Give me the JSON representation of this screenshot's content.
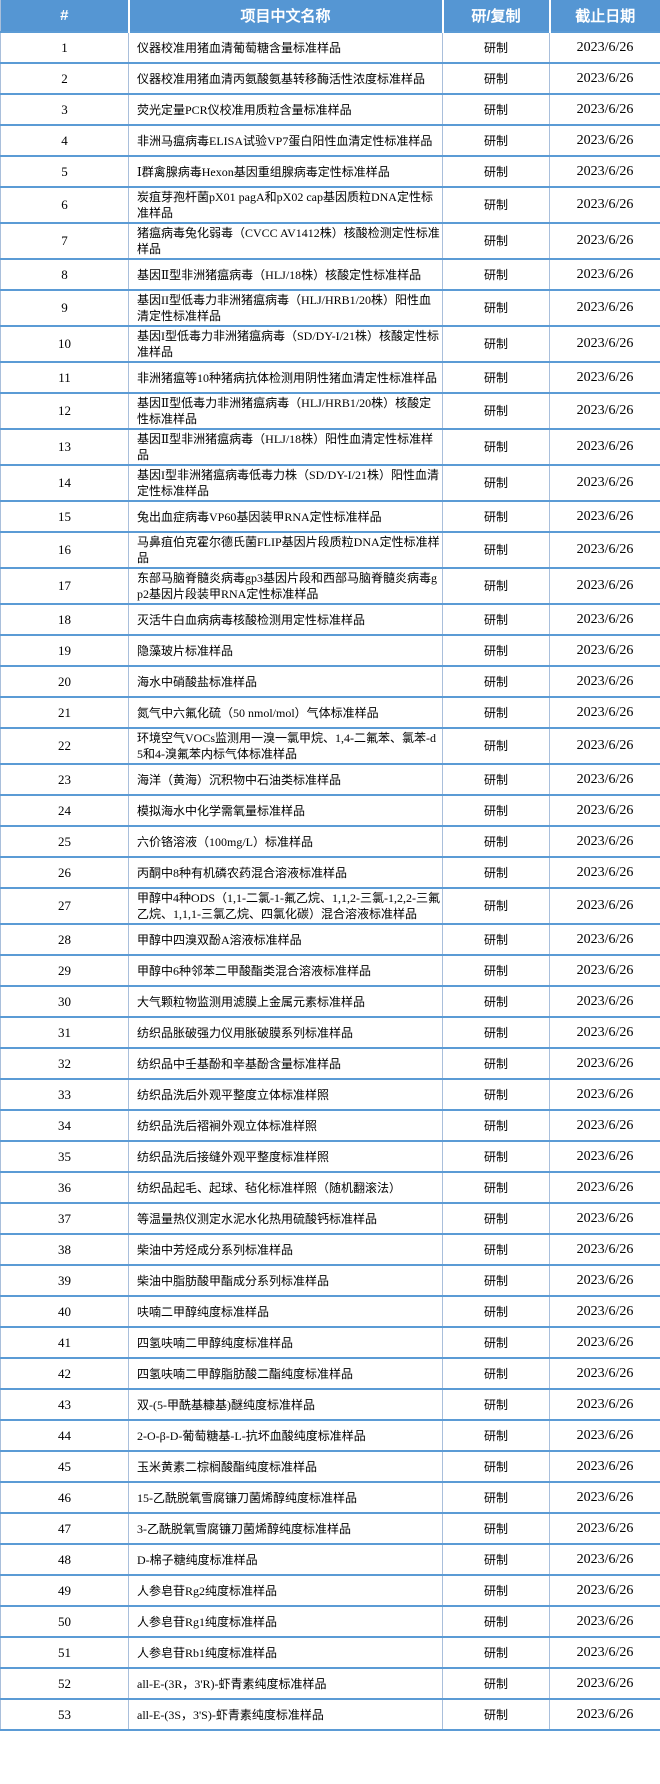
{
  "colors": {
    "header_bg": "#5596D3",
    "header_text": "#FFFFFF",
    "row_border_blue": "#5B9BD5",
    "column_border_light": "#A9BFDB",
    "cell_text": "#000000"
  },
  "table": {
    "headers": [
      "#",
      "项目中文名称",
      "研/复制",
      "截止日期"
    ],
    "rows": [
      {
        "num": "1",
        "name": "仪器校准用猪血清葡萄糖含量标准样品",
        "type": "研制",
        "deadline": "2023/6/26"
      },
      {
        "num": "2",
        "name": "仪器校准用猪血清丙氨酸氨基转移酶活性浓度标准样品",
        "type": "研制",
        "deadline": "2023/6/26"
      },
      {
        "num": "3",
        "name": "荧光定量PCR仪校准用质粒含量标准样品",
        "type": "研制",
        "deadline": "2023/6/26"
      },
      {
        "num": "4",
        "name": "非洲马瘟病毒ELISA试验VP7蛋白阳性血清定性标准样品",
        "type": "研制",
        "deadline": "2023/6/26"
      },
      {
        "num": "5",
        "name": "Ⅰ群禽腺病毒Hexon基因重组腺病毒定性标准样品",
        "type": "研制",
        "deadline": "2023/6/26"
      },
      {
        "num": "6",
        "name": "炭疽芽孢杆菌pX01 pagA和pX02 cap基因质粒DNA定性标准样品",
        "type": "研制",
        "deadline": "2023/6/26"
      },
      {
        "num": "7",
        "name": "猪瘟病毒兔化弱毒（CVCC AV1412株）核酸检测定性标准样品",
        "type": "研制",
        "deadline": "2023/6/26"
      },
      {
        "num": "8",
        "name": "基因Ⅱ型非洲猪瘟病毒（HLJ/18株）核酸定性标准样品",
        "type": "研制",
        "deadline": "2023/6/26"
      },
      {
        "num": "9",
        "name": "基因II型低毒力非洲猪瘟病毒（HLJ/HRB1/20株）阳性血清定性标准样品",
        "type": "研制",
        "deadline": "2023/6/26"
      },
      {
        "num": "10",
        "name": "基因I型低毒力非洲猪瘟病毒（SD/DY-I/21株）核酸定性标准样品",
        "type": "研制",
        "deadline": "2023/6/26"
      },
      {
        "num": "11",
        "name": "非洲猪瘟等10种猪病抗体检测用阴性猪血清定性标准样品",
        "type": "研制",
        "deadline": "2023/6/26"
      },
      {
        "num": "12",
        "name": "基因Ⅱ型低毒力非洲猪瘟病毒（HLJ/HRB1/20株）核酸定性标准样品",
        "type": "研制",
        "deadline": "2023/6/26"
      },
      {
        "num": "13",
        "name": "基因Ⅱ型非洲猪瘟病毒（HLJ/18株）阳性血清定性标准样品",
        "type": "研制",
        "deadline": "2023/6/26"
      },
      {
        "num": "14",
        "name": "基因I型非洲猪瘟病毒低毒力株（SD/DY-I/21株）阳性血清定性标准样品",
        "type": "研制",
        "deadline": "2023/6/26"
      },
      {
        "num": "15",
        "name": "兔出血症病毒VP60基因装甲RNA定性标准样品",
        "type": "研制",
        "deadline": "2023/6/26"
      },
      {
        "num": "16",
        "name": "马鼻疽伯克霍尔德氏菌FLIP基因片段质粒DNA定性标准样品",
        "type": "研制",
        "deadline": "2023/6/26"
      },
      {
        "num": "17",
        "name": "东部马脑脊髓炎病毒gp3基因片段和西部马脑脊髓炎病毒gp2基因片段装甲RNA定性标准样品",
        "type": "研制",
        "deadline": "2023/6/26"
      },
      {
        "num": "18",
        "name": "灭活牛白血病病毒核酸检测用定性标准样品",
        "type": "研制",
        "deadline": "2023/6/26"
      },
      {
        "num": "19",
        "name": "隐藻玻片标准样品",
        "type": "研制",
        "deadline": "2023/6/26"
      },
      {
        "num": "20",
        "name": "海水中硝酸盐标准样品",
        "type": "研制",
        "deadline": "2023/6/26"
      },
      {
        "num": "21",
        "name": "氮气中六氟化硫（50 nmol/mol）气体标准样品",
        "type": "研制",
        "deadline": "2023/6/26"
      },
      {
        "num": "22",
        "name": "环境空气VOCs监测用一溴一氯甲烷、1,4-二氟苯、氯苯-d5和4-溴氟苯内标气体标准样品",
        "type": "研制",
        "deadline": "2023/6/26"
      },
      {
        "num": "23",
        "name": "海洋（黄海）沉积物中石油类标准样品",
        "type": "研制",
        "deadline": "2023/6/26"
      },
      {
        "num": "24",
        "name": "模拟海水中化学需氧量标准样品",
        "type": "研制",
        "deadline": "2023/6/26"
      },
      {
        "num": "25",
        "name": "六价铬溶液（100mg/L）标准样品",
        "type": "研制",
        "deadline": "2023/6/26"
      },
      {
        "num": "26",
        "name": "丙酮中8种有机磷农药混合溶液标准样品",
        "type": "研制",
        "deadline": "2023/6/26"
      },
      {
        "num": "27",
        "name": "甲醇中4种ODS（1,1-二氯-1-氟乙烷、1,1,2-三氯-1,2,2-三氟乙烷、1,1,1-三氯乙烷、四氯化碳）混合溶液标准样品",
        "type": "研制",
        "deadline": "2023/6/26"
      },
      {
        "num": "28",
        "name": "甲醇中四溴双酚A溶液标准样品",
        "type": "研制",
        "deadline": "2023/6/26"
      },
      {
        "num": "29",
        "name": "甲醇中6种邻苯二甲酸酯类混合溶液标准样品",
        "type": "研制",
        "deadline": "2023/6/26"
      },
      {
        "num": "30",
        "name": "大气颗粒物监测用滤膜上金属元素标准样品",
        "type": "研制",
        "deadline": "2023/6/26"
      },
      {
        "num": "31",
        "name": "纺织品胀破强力仪用胀破膜系列标准样品",
        "type": "研制",
        "deadline": "2023/6/26"
      },
      {
        "num": "32",
        "name": "纺织品中壬基酚和辛基酚含量标准样品",
        "type": "研制",
        "deadline": "2023/6/26"
      },
      {
        "num": "33",
        "name": "纺织品洗后外观平整度立体标准样照",
        "type": "研制",
        "deadline": "2023/6/26"
      },
      {
        "num": "34",
        "name": "纺织品洗后褶裥外观立体标准样照",
        "type": "研制",
        "deadline": "2023/6/26"
      },
      {
        "num": "35",
        "name": "纺织品洗后接缝外观平整度标准样照",
        "type": "研制",
        "deadline": "2023/6/26"
      },
      {
        "num": "36",
        "name": "纺织品起毛、起球、毡化标准样照（随机翻滚法）",
        "type": "研制",
        "deadline": "2023/6/26"
      },
      {
        "num": "37",
        "name": "等温量热仪测定水泥水化热用硫酸钙标准样品",
        "type": "研制",
        "deadline": "2023/6/26"
      },
      {
        "num": "38",
        "name": "柴油中芳烃成分系列标准样品",
        "type": "研制",
        "deadline": "2023/6/26"
      },
      {
        "num": "39",
        "name": "柴油中脂肪酸甲酯成分系列标准样品",
        "type": "研制",
        "deadline": "2023/6/26"
      },
      {
        "num": "40",
        "name": "呋喃二甲醇纯度标准样品",
        "type": "研制",
        "deadline": "2023/6/26"
      },
      {
        "num": "41",
        "name": "四氢呋喃二甲醇纯度标准样品",
        "type": "研制",
        "deadline": "2023/6/26"
      },
      {
        "num": "42",
        "name": "四氢呋喃二甲醇脂肪酸二酯纯度标准样品",
        "type": "研制",
        "deadline": "2023/6/26"
      },
      {
        "num": "43",
        "name": "双-(5-甲酰基糠基)醚纯度标准样品",
        "type": "研制",
        "deadline": "2023/6/26"
      },
      {
        "num": "44",
        "name": "2-O-β-D-葡萄糖基-L-抗坏血酸纯度标准样品",
        "type": "研制",
        "deadline": "2023/6/26"
      },
      {
        "num": "45",
        "name": "玉米黄素二棕榈酸酯纯度标准样品",
        "type": "研制",
        "deadline": "2023/6/26"
      },
      {
        "num": "46",
        "name": "15-乙酰脱氧雪腐镰刀菌烯醇纯度标准样品",
        "type": "研制",
        "deadline": "2023/6/26"
      },
      {
        "num": "47",
        "name": "3-乙酰脱氧雪腐镰刀菌烯醇纯度标准样品",
        "type": "研制",
        "deadline": "2023/6/26"
      },
      {
        "num": "48",
        "name": "D-棉子糖纯度标准样品",
        "type": "研制",
        "deadline": "2023/6/26"
      },
      {
        "num": "49",
        "name": "人参皂苷Rg2纯度标准样品",
        "type": "研制",
        "deadline": "2023/6/26"
      },
      {
        "num": "50",
        "name": "人参皂苷Rg1纯度标准样品",
        "type": "研制",
        "deadline": "2023/6/26"
      },
      {
        "num": "51",
        "name": "人参皂苷Rb1纯度标准样品",
        "type": "研制",
        "deadline": "2023/6/26"
      },
      {
        "num": "52",
        "name": "all-E-(3R，3'R)-虾青素纯度标准样品",
        "type": "研制",
        "deadline": "2023/6/26"
      },
      {
        "num": "53",
        "name": "all-E-(3S，3'S)-虾青素纯度标准样品",
        "type": "研制",
        "deadline": "2023/6/26"
      }
    ]
  }
}
